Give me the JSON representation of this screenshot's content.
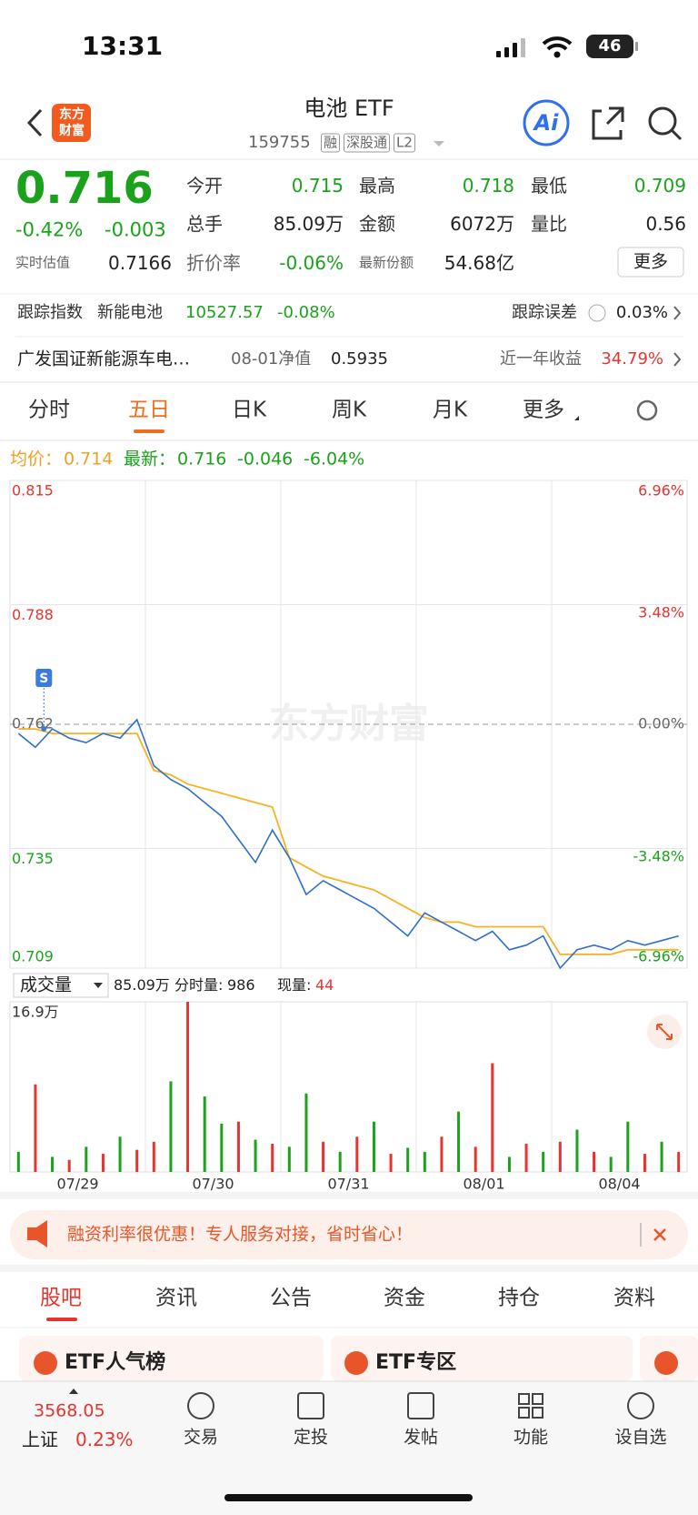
{
  "status": {
    "time": "13:31",
    "battery": "46"
  },
  "header": {
    "logo": [
      "东方",
      "财富"
    ],
    "title": "电池 ETF",
    "code": "159755",
    "tags": [
      "融",
      "深股通",
      "L2"
    ],
    "ai": "Ai"
  },
  "quote": {
    "price": "0.716",
    "change_pct": "-0.42%",
    "change": "-0.003",
    "estimate_label": "实时估值",
    "estimate": "0.7166",
    "fields": [
      {
        "label": "今开",
        "value": "0.715"
      },
      {
        "label": "最高",
        "value": "0.718"
      },
      {
        "label": "最低",
        "value": "0.709"
      },
      {
        "label": "总手",
        "value": "85.09万"
      },
      {
        "label": "金额",
        "value": "6072万"
      },
      {
        "label": "量比",
        "value": "0.56"
      },
      {
        "label": "折价率",
        "value": "-0.06%"
      },
      {
        "label": "最新份额",
        "value": "54.68亿"
      }
    ],
    "more": "更多"
  },
  "tracking": {
    "label": "跟踪指数",
    "index": "新能电池",
    "value": "10527.57",
    "change": "-0.08%",
    "error_label": "跟踪误差",
    "error": "0.03%"
  },
  "fund": {
    "name": "广发国证新能源车电…",
    "nav_label": "08-01净值",
    "nav": "0.5935",
    "return_label": "近一年收益",
    "return": "34.79%"
  },
  "tabs": [
    "分时",
    "五日",
    "日K",
    "周K",
    "月K",
    "更多"
  ],
  "legend": {
    "avg_label": "均价：",
    "avg": "0.714",
    "last_label": "最新：",
    "last": "0.716",
    "change": "-0.046",
    "change_pct": "-6.04%"
  },
  "watermark": "东方财富",
  "chart_data": [
    {
      "type": "line",
      "x": [
        0.0625,
        0.1875,
        0.3125,
        0.4375,
        0.5625,
        0.6875,
        0.8125,
        0.9375,
        1.0625,
        1.1875,
        1.3125,
        1.4375,
        1.5625,
        1.6875,
        1.8125,
        1.9375,
        2.0625,
        2.1875,
        2.3125,
        2.4375,
        2.5625,
        2.6875,
        2.8125,
        2.9375,
        3.0625,
        3.1875,
        3.3125,
        3.4375,
        3.5625,
        3.6875,
        3.8125,
        3.9375,
        4.0625,
        4.1875,
        4.3125,
        4.4375,
        4.5625,
        4.6875,
        4.8125,
        4.9375
      ],
      "series": [
        {
          "color": "#2f6fc6",
          "values": [
            0.76,
            0.757,
            0.761,
            0.759,
            0.758,
            0.76,
            0.759,
            0.763,
            0.753,
            0.75,
            0.748,
            0.745,
            0.742,
            0.737,
            0.732,
            0.739,
            0.733,
            0.725,
            0.728,
            0.726,
            0.724,
            0.722,
            0.719,
            0.716,
            0.721,
            0.719,
            0.717,
            0.715,
            0.717,
            0.713,
            0.714,
            0.716,
            0.709,
            0.713,
            0.714,
            0.713,
            0.715,
            0.714,
            0.715,
            0.716
          ]
        },
        {
          "color": "#f5b224",
          "values": [
            0.761,
            0.761,
            0.76,
            0.76,
            0.76,
            0.76,
            0.76,
            0.76,
            0.752,
            0.751,
            0.749,
            0.748,
            0.747,
            0.746,
            0.745,
            0.744,
            0.733,
            0.731,
            0.729,
            0.728,
            0.727,
            0.726,
            0.724,
            0.722,
            0.72,
            0.719,
            0.719,
            0.718,
            0.718,
            0.718,
            0.718,
            0.718,
            0.712,
            0.712,
            0.712,
            0.712,
            0.713,
            0.713,
            0.713,
            0.713
          ]
        }
      ],
      "xlim": [
        0,
        5
      ],
      "ylim": [
        0.709,
        0.815
      ],
      "yticks": [
        0.815,
        0.788,
        0.762,
        0.735,
        0.709
      ],
      "y2lim": [
        -6.96,
        6.96
      ],
      "y2ticks": [
        {
          "value": 6.96,
          "label": "6.96%"
        },
        {
          "value": 3.48,
          "label": "3.48%"
        },
        {
          "value": 0,
          "label": "0.00%"
        },
        {
          "value": -3.48,
          "label": "-3.48%"
        },
        {
          "value": -6.96,
          "label": "-6.96%"
        }
      ],
      "annotations": [
        {
          "text": "S",
          "x": 0.25,
          "y": 0.761
        }
      ],
      "grid": true
    },
    {
      "type": "bar",
      "x": [
        0.0625,
        0.1875,
        0.3125,
        0.4375,
        0.5625,
        0.6875,
        0.8125,
        0.9375,
        1.0625,
        1.1875,
        1.3125,
        1.4375,
        1.5625,
        1.6875,
        1.8125,
        1.9375,
        2.0625,
        2.1875,
        2.3125,
        2.4375,
        2.5625,
        2.6875,
        2.8125,
        2.9375,
        3.0625,
        3.1875,
        3.3125,
        3.4375,
        3.5625,
        3.6875,
        3.8125,
        3.9375,
        4.0625,
        4.1875,
        4.3125,
        4.4375,
        4.5625,
        4.6875,
        4.8125,
        4.9375
      ],
      "values": [
        2.0,
        8.7,
        1.5,
        1.2,
        2.5,
        1.8,
        3.5,
        2.2,
        3.0,
        9.0,
        16.9,
        7.5,
        4.8,
        5.0,
        3.2,
        2.8,
        2.5,
        7.8,
        3.0,
        2.0,
        3.5,
        5.0,
        1.8,
        2.4,
        2.0,
        3.5,
        6.0,
        2.5,
        10.8,
        1.5,
        2.8,
        2.0,
        3.0,
        4.2,
        2.0,
        1.5,
        5.0,
        1.8,
        3.0,
        2.0
      ],
      "colors": [
        "#1aa31a",
        "#e8332e",
        "#1aa31a",
        "#e8332e",
        "#1aa31a",
        "#e8332e",
        "#1aa31a",
        "#e8332e",
        "#e8332e",
        "#1aa31a",
        "#e8332e",
        "#1aa31a",
        "#1aa31a",
        "#e8332e",
        "#1aa31a",
        "#e8332e",
        "#1aa31a",
        "#1aa31a",
        "#e8332e",
        "#1aa31a",
        "#e8332e",
        "#1aa31a",
        "#e8332e",
        "#1aa31a",
        "#1aa31a",
        "#e8332e",
        "#1aa31a",
        "#e8332e",
        "#e8332e",
        "#1aa31a",
        "#e8332e",
        "#1aa31a",
        "#e8332e",
        "#1aa31a",
        "#e8332e",
        "#1aa31a",
        "#1aa31a",
        "#e8332e",
        "#1aa31a",
        "#e8332e"
      ],
      "xlim": [
        0,
        5
      ],
      "xticks": [
        {
          "value": 0.5,
          "label": "07/29"
        },
        {
          "value": 1.5,
          "label": "07/30"
        },
        {
          "value": 2.5,
          "label": "07/31"
        },
        {
          "value": 3.5,
          "label": "08/01"
        },
        {
          "value": 4.5,
          "label": "08/04"
        }
      ],
      "ylim": [
        0,
        16.9
      ],
      "yticks": [
        {
          "value": 16.9,
          "label": "16.9万"
        }
      ]
    }
  ],
  "volume_header": {
    "selector": "成交量",
    "total": "85.09万",
    "bar_label": "分时量:",
    "bar": "986",
    "now_label": "现量:",
    "now": "44"
  },
  "banner": "融资利率很优惠！专人服务对接，省时省心！",
  "sub_tabs": [
    "股吧",
    "资讯",
    "公告",
    "资金",
    "持仓",
    "资料"
  ],
  "cards": [
    "ETF人气榜",
    "ETF专区"
  ],
  "bottom_nav": {
    "index_value": "3568.05",
    "index_name": "上证",
    "index_change": "0.23%",
    "items": [
      "交易",
      "定投",
      "发帖",
      "功能",
      "设自选"
    ]
  }
}
